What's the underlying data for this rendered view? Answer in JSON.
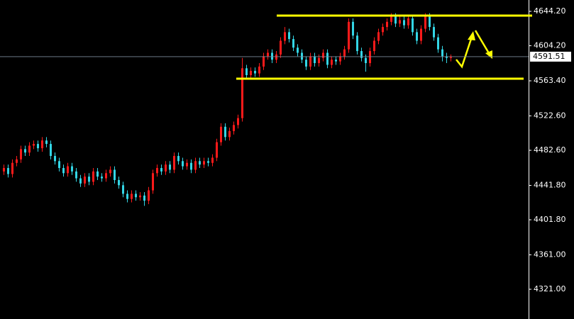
{
  "chart_data": {
    "type": "candlestick",
    "up_color": "#ff1a1a",
    "down_color": "#33d6e6",
    "ylim": [
      4286.4,
      4657.4
    ],
    "yticks": [
      {
        "value": 4644.2,
        "label": "4644.20"
      },
      {
        "value": 4604.2,
        "label": "4604.20"
      },
      {
        "value": 4563.4,
        "label": "4563.40"
      },
      {
        "value": 4522.6,
        "label": "4522.60"
      },
      {
        "value": 4482.6,
        "label": "4482.60"
      },
      {
        "value": 4441.8,
        "label": "4441.80"
      },
      {
        "value": 4401.8,
        "label": "4401.80"
      },
      {
        "value": 4361,
        "label": "4361.00"
      },
      {
        "value": 4321,
        "label": "4321.00"
      }
    ],
    "last_price": 4591.51,
    "open": [
      4458,
      4462,
      4455,
      4468,
      4472,
      4484,
      4480,
      4488,
      4490,
      4485,
      4494,
      4490,
      4476,
      4470,
      4462,
      4456,
      4464,
      4458,
      4450,
      4444,
      4452,
      4446,
      4458,
      4452,
      4450,
      4456,
      4460,
      4448,
      4442,
      4432,
      4426,
      4432,
      4428,
      4430,
      4424,
      4436,
      4456,
      4462,
      4458,
      4466,
      4460,
      4476,
      4470,
      4464,
      4468,
      4460,
      4470,
      4466,
      4470,
      4468,
      4474,
      4492,
      4510,
      4498,
      4505,
      4512,
      4520,
      4578,
      4570,
      4575,
      4572,
      4580,
      4592,
      4596,
      4588,
      4594,
      4610,
      4620,
      4612,
      4602,
      4596,
      4588,
      4580,
      4592,
      4584,
      4590,
      4596,
      4582,
      4588,
      4586,
      4592,
      4600,
      4632,
      4616,
      4598,
      4590,
      4584,
      4598,
      4610,
      4620,
      4626,
      4632,
      4638,
      4630,
      4634,
      4628,
      4636,
      4620,
      4610,
      4624,
      4638,
      4626,
      4614,
      4600,
      4592,
      4590
    ],
    "high": [
      4466,
      4466,
      4472,
      4476,
      4488,
      4488,
      4492,
      4494,
      4494,
      4498,
      4498,
      4494,
      4480,
      4474,
      4466,
      4468,
      4468,
      4462,
      4454,
      4456,
      4456,
      4462,
      4462,
      4456,
      4460,
      4464,
      4464,
      4452,
      4446,
      4436,
      4436,
      4436,
      4434,
      4434,
      4440,
      4460,
      4466,
      4466,
      4470,
      4470,
      4480,
      4480,
      4474,
      4472,
      4472,
      4474,
      4474,
      4474,
      4474,
      4478,
      4496,
      4514,
      4514,
      4509,
      4516,
      4524,
      4590,
      4582,
      4579,
      4579,
      4584,
      4596,
      4600,
      4600,
      4598,
      4614,
      4626,
      4624,
      4616,
      4606,
      4600,
      4592,
      4596,
      4596,
      4594,
      4600,
      4600,
      4592,
      4592,
      4596,
      4604,
      4636,
      4636,
      4620,
      4602,
      4594,
      4602,
      4614,
      4624,
      4630,
      4636,
      4642,
      4642,
      4638,
      4638,
      4640,
      4640,
      4624,
      4628,
      4642,
      4642,
      4630,
      4618,
      4604,
      4596,
      4594
    ],
    "low": [
      4454,
      4451,
      4451,
      4464,
      4468,
      4476,
      4476,
      4484,
      4481,
      4481,
      4486,
      4472,
      4466,
      4458,
      4452,
      4452,
      4454,
      4446,
      4440,
      4440,
      4442,
      4442,
      4448,
      4446,
      4446,
      4452,
      4444,
      4438,
      4428,
      4422,
      4422,
      4424,
      4424,
      4418,
      4420,
      4432,
      4452,
      4454,
      4454,
      4456,
      4456,
      4466,
      4460,
      4460,
      4456,
      4456,
      4462,
      4462,
      4464,
      4464,
      4470,
      4488,
      4494,
      4494,
      4501,
      4508,
      4516,
      4566,
      4566,
      4568,
      4568,
      4576,
      4588,
      4584,
      4584,
      4590,
      4606,
      4608,
      4598,
      4592,
      4584,
      4576,
      4576,
      4580,
      4580,
      4586,
      4578,
      4578,
      4582,
      4582,
      4588,
      4596,
      4612,
      4594,
      4586,
      4574,
      4580,
      4594,
      4606,
      4616,
      4622,
      4628,
      4626,
      4626,
      4624,
      4624,
      4616,
      4606,
      4606,
      4620,
      4622,
      4610,
      4596,
      4586,
      4584,
      4586
    ],
    "close": [
      4462,
      4455,
      4468,
      4472,
      4484,
      4480,
      4488,
      4490,
      4485,
      4494,
      4490,
      4476,
      4470,
      4462,
      4456,
      4464,
      4458,
      4450,
      4444,
      4452,
      4446,
      4458,
      4452,
      4450,
      4456,
      4460,
      4448,
      4442,
      4432,
      4426,
      4432,
      4428,
      4430,
      4424,
      4436,
      4456,
      4462,
      4458,
      4466,
      4460,
      4476,
      4470,
      4464,
      4468,
      4460,
      4470,
      4466,
      4470,
      4468,
      4474,
      4492,
      4510,
      4498,
      4505,
      4512,
      4520,
      4578,
      4570,
      4575,
      4572,
      4580,
      4592,
      4596,
      4588,
      4594,
      4610,
      4620,
      4612,
      4602,
      4596,
      4588,
      4580,
      4592,
      4584,
      4590,
      4596,
      4582,
      4588,
      4586,
      4592,
      4600,
      4632,
      4616,
      4598,
      4590,
      4584,
      4598,
      4610,
      4620,
      4626,
      4632,
      4638,
      4630,
      4634,
      4628,
      4636,
      4620,
      4610,
      4624,
      4638,
      4626,
      4614,
      4600,
      4592,
      4590,
      4591.51
    ]
  }
}
